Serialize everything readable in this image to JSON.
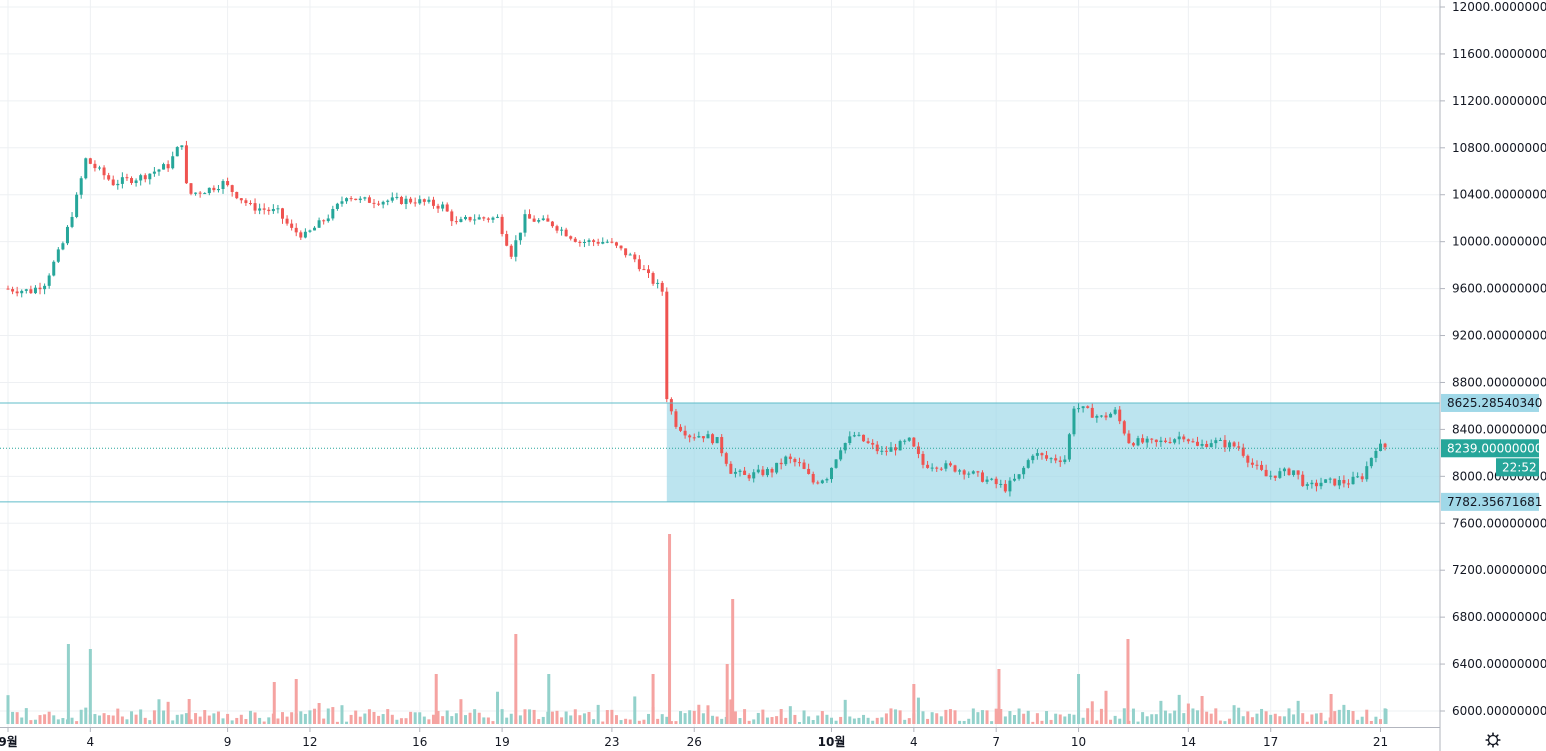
{
  "chart_data": {
    "type": "candlestick",
    "y_axis": {
      "range": [
        5880,
        12060
      ],
      "tick_labels": [
        "12000.00000000",
        "11600.00000000",
        "11200.00000000",
        "10800.00000000",
        "10400.00000000",
        "10000.00000000",
        "9600.00000000",
        "9200.00000000",
        "8800.00000000",
        "8400.00000000",
        "8000.00000000",
        "7600.00000000",
        "7200.00000000",
        "6800.00000000",
        "6400.00000000",
        "6000.00000000"
      ],
      "tick_values": [
        12000,
        11600,
        11200,
        10800,
        10400,
        10000,
        9600,
        9200,
        8800,
        8400,
        8000,
        7600,
        7200,
        6800,
        6400,
        6000
      ]
    },
    "x_axis": {
      "labels": [
        {
          "text": "9월",
          "day": 0,
          "bold": true
        },
        {
          "text": "4",
          "day": 3
        },
        {
          "text": "9",
          "day": 8
        },
        {
          "text": "12",
          "day": 11
        },
        {
          "text": "16",
          "day": 15
        },
        {
          "text": "19",
          "day": 18
        },
        {
          "text": "23",
          "day": 22
        },
        {
          "text": "26",
          "day": 25
        },
        {
          "text": "10월",
          "day": 30,
          "bold": true
        },
        {
          "text": "4",
          "day": 33
        },
        {
          "text": "7",
          "day": 36
        },
        {
          "text": "10",
          "day": 39
        },
        {
          "text": "14",
          "day": 43
        },
        {
          "text": "17",
          "day": 46
        },
        {
          "text": "21",
          "day": 50
        }
      ],
      "range_days": [
        0,
        51.3
      ]
    },
    "price_path": [
      [
        0,
        9600
      ],
      [
        1,
        9580
      ],
      [
        1.5,
        9650
      ],
      [
        2.2,
        10000
      ],
      [
        2.7,
        10400
      ],
      [
        3,
        10700
      ],
      [
        3.5,
        10600
      ],
      [
        4,
        10500
      ],
      [
        5,
        10550
      ],
      [
        6,
        10650
      ],
      [
        6.5,
        10850
      ],
      [
        6.7,
        10400
      ],
      [
        7.5,
        10450
      ],
      [
        8,
        10500
      ],
      [
        8.5,
        10400
      ],
      [
        9,
        10300
      ],
      [
        10,
        10250
      ],
      [
        10.5,
        10100
      ],
      [
        11,
        10050
      ],
      [
        11.5,
        10150
      ],
      [
        12,
        10250
      ],
      [
        12.5,
        10400
      ],
      [
        13,
        10350
      ],
      [
        14,
        10350
      ],
      [
        15,
        10350
      ],
      [
        16,
        10300
      ],
      [
        16.5,
        10150
      ],
      [
        17,
        10200
      ],
      [
        18,
        10200
      ],
      [
        18.5,
        9900
      ],
      [
        19,
        10200
      ],
      [
        20,
        10150
      ],
      [
        21,
        10000
      ],
      [
        22,
        10000
      ],
      [
        23,
        9850
      ],
      [
        23.5,
        9700
      ],
      [
        24,
        9580
      ],
      [
        24.1,
        8700
      ],
      [
        24.5,
        8450
      ],
      [
        25,
        8350
      ],
      [
        25.5,
        8350
      ],
      [
        26,
        8300
      ],
      [
        26.5,
        8050
      ],
      [
        27,
        8000
      ],
      [
        28,
        8050
      ],
      [
        28.5,
        8150
      ],
      [
        29,
        8100
      ],
      [
        29.5,
        7950
      ],
      [
        30,
        8000
      ],
      [
        30.5,
        8250
      ],
      [
        31,
        8350
      ],
      [
        32,
        8200
      ],
      [
        33,
        8300
      ],
      [
        33.5,
        8100
      ],
      [
        34,
        8100
      ],
      [
        35,
        8050
      ],
      [
        36,
        7950
      ],
      [
        36.5,
        7900
      ],
      [
        37,
        8000
      ],
      [
        37.5,
        8200
      ],
      [
        38,
        8150
      ],
      [
        38.7,
        8150
      ],
      [
        39,
        8600
      ],
      [
        40,
        8500
      ],
      [
        40.5,
        8550
      ],
      [
        41,
        8300
      ],
      [
        42,
        8280
      ],
      [
        43,
        8350
      ],
      [
        43.5,
        8250
      ],
      [
        44,
        8300
      ],
      [
        45,
        8250
      ],
      [
        45.5,
        8100
      ],
      [
        46,
        8000
      ],
      [
        47,
        8050
      ],
      [
        47.5,
        7900
      ],
      [
        48,
        7950
      ],
      [
        49,
        7950
      ],
      [
        49.5,
        8000
      ],
      [
        50,
        8250
      ]
    ],
    "rectangle": {
      "upper": 8625.2854034,
      "lower": 7782.35671681,
      "start_day": 24
    },
    "last_price": 8239,
    "price_labels": {
      "upper": "8625.28540340",
      "last": "8239.00000000",
      "lower": "7782.35671681"
    },
    "countdown": "22:52",
    "volume_spikes": [
      {
        "day": 2.2,
        "height": 80,
        "dir": "up"
      },
      {
        "day": 3,
        "height": 75,
        "dir": "up"
      },
      {
        "day": 6.6,
        "height": 25,
        "dir": "down"
      },
      {
        "day": 9.7,
        "height": 42,
        "dir": "down"
      },
      {
        "day": 10.5,
        "height": 45,
        "dir": "down"
      },
      {
        "day": 15.6,
        "height": 50,
        "dir": "down"
      },
      {
        "day": 18.5,
        "height": 90,
        "dir": "down"
      },
      {
        "day": 19.7,
        "height": 50,
        "dir": "up"
      },
      {
        "day": 23.5,
        "height": 50,
        "dir": "down"
      },
      {
        "day": 24.1,
        "height": 190,
        "dir": "down"
      },
      {
        "day": 26.4,
        "height": 125,
        "dir": "down"
      },
      {
        "day": 26.2,
        "height": 60,
        "dir": "down"
      },
      {
        "day": 33,
        "height": 40,
        "dir": "down"
      },
      {
        "day": 36.1,
        "height": 55,
        "dir": "down"
      },
      {
        "day": 39,
        "height": 50,
        "dir": "up"
      },
      {
        "day": 40.8,
        "height": 85,
        "dir": "down"
      },
      {
        "day": 43.5,
        "height": 28,
        "dir": "down"
      },
      {
        "day": 48.2,
        "height": 30,
        "dir": "down"
      },
      {
        "day": 50.2,
        "height": 15,
        "dir": "up"
      }
    ]
  }
}
